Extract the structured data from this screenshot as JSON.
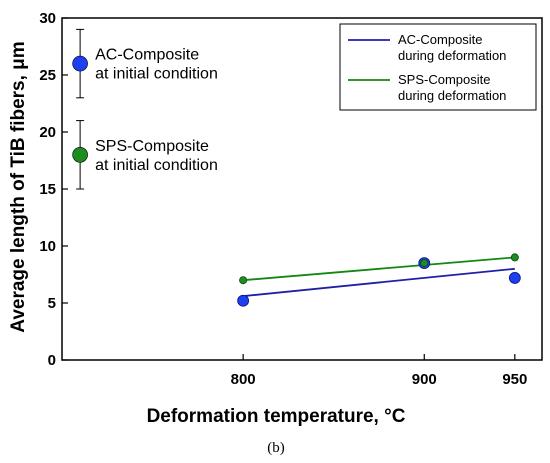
{
  "chart_data": {
    "type": "line",
    "xlabel": "Deformation temperature, °C",
    "ylabel": "Average length of TiB fibers, μm",
    "caption": "(b)",
    "xlim": [
      700,
      965
    ],
    "ylim": [
      0,
      30
    ],
    "xticks": [
      800,
      900,
      950
    ],
    "yticks": [
      0,
      5,
      10,
      15,
      20,
      25,
      30
    ],
    "grid": false,
    "legend_placement": "top-right",
    "series": [
      {
        "name": "AC-Composite during deformation",
        "color": "#1f1fa8",
        "point_color": "#1c3ff0",
        "points": [
          {
            "x": 800,
            "y": 5.2
          },
          {
            "x": 900,
            "y": 8.5
          },
          {
            "x": 950,
            "y": 7.2
          }
        ],
        "fit": [
          {
            "x": 800,
            "y": 5.6
          },
          {
            "x": 950,
            "y": 8.0
          }
        ]
      },
      {
        "name": "SPS-Composite during deformation",
        "color": "#118811",
        "point_color": "#1e8c1e",
        "points": [
          {
            "x": 800,
            "y": 7.0
          },
          {
            "x": 900,
            "y": 8.5
          },
          {
            "x": 950,
            "y": 9.0
          }
        ],
        "fit": [
          {
            "x": 800,
            "y": 7.0
          },
          {
            "x": 950,
            "y": 9.0
          }
        ]
      }
    ],
    "initial_conditions": [
      {
        "label_line1": "AC-Composite",
        "label_line2": "at initial condition",
        "x": 710,
        "y": 26,
        "err_low": 23,
        "err_high": 29,
        "color": "#1c3ff0"
      },
      {
        "label_line1": "SPS-Composite",
        "label_line2": "at initial condition",
        "x": 710,
        "y": 18,
        "err_low": 15,
        "err_high": 21,
        "color": "#1e8c1e"
      }
    ]
  }
}
